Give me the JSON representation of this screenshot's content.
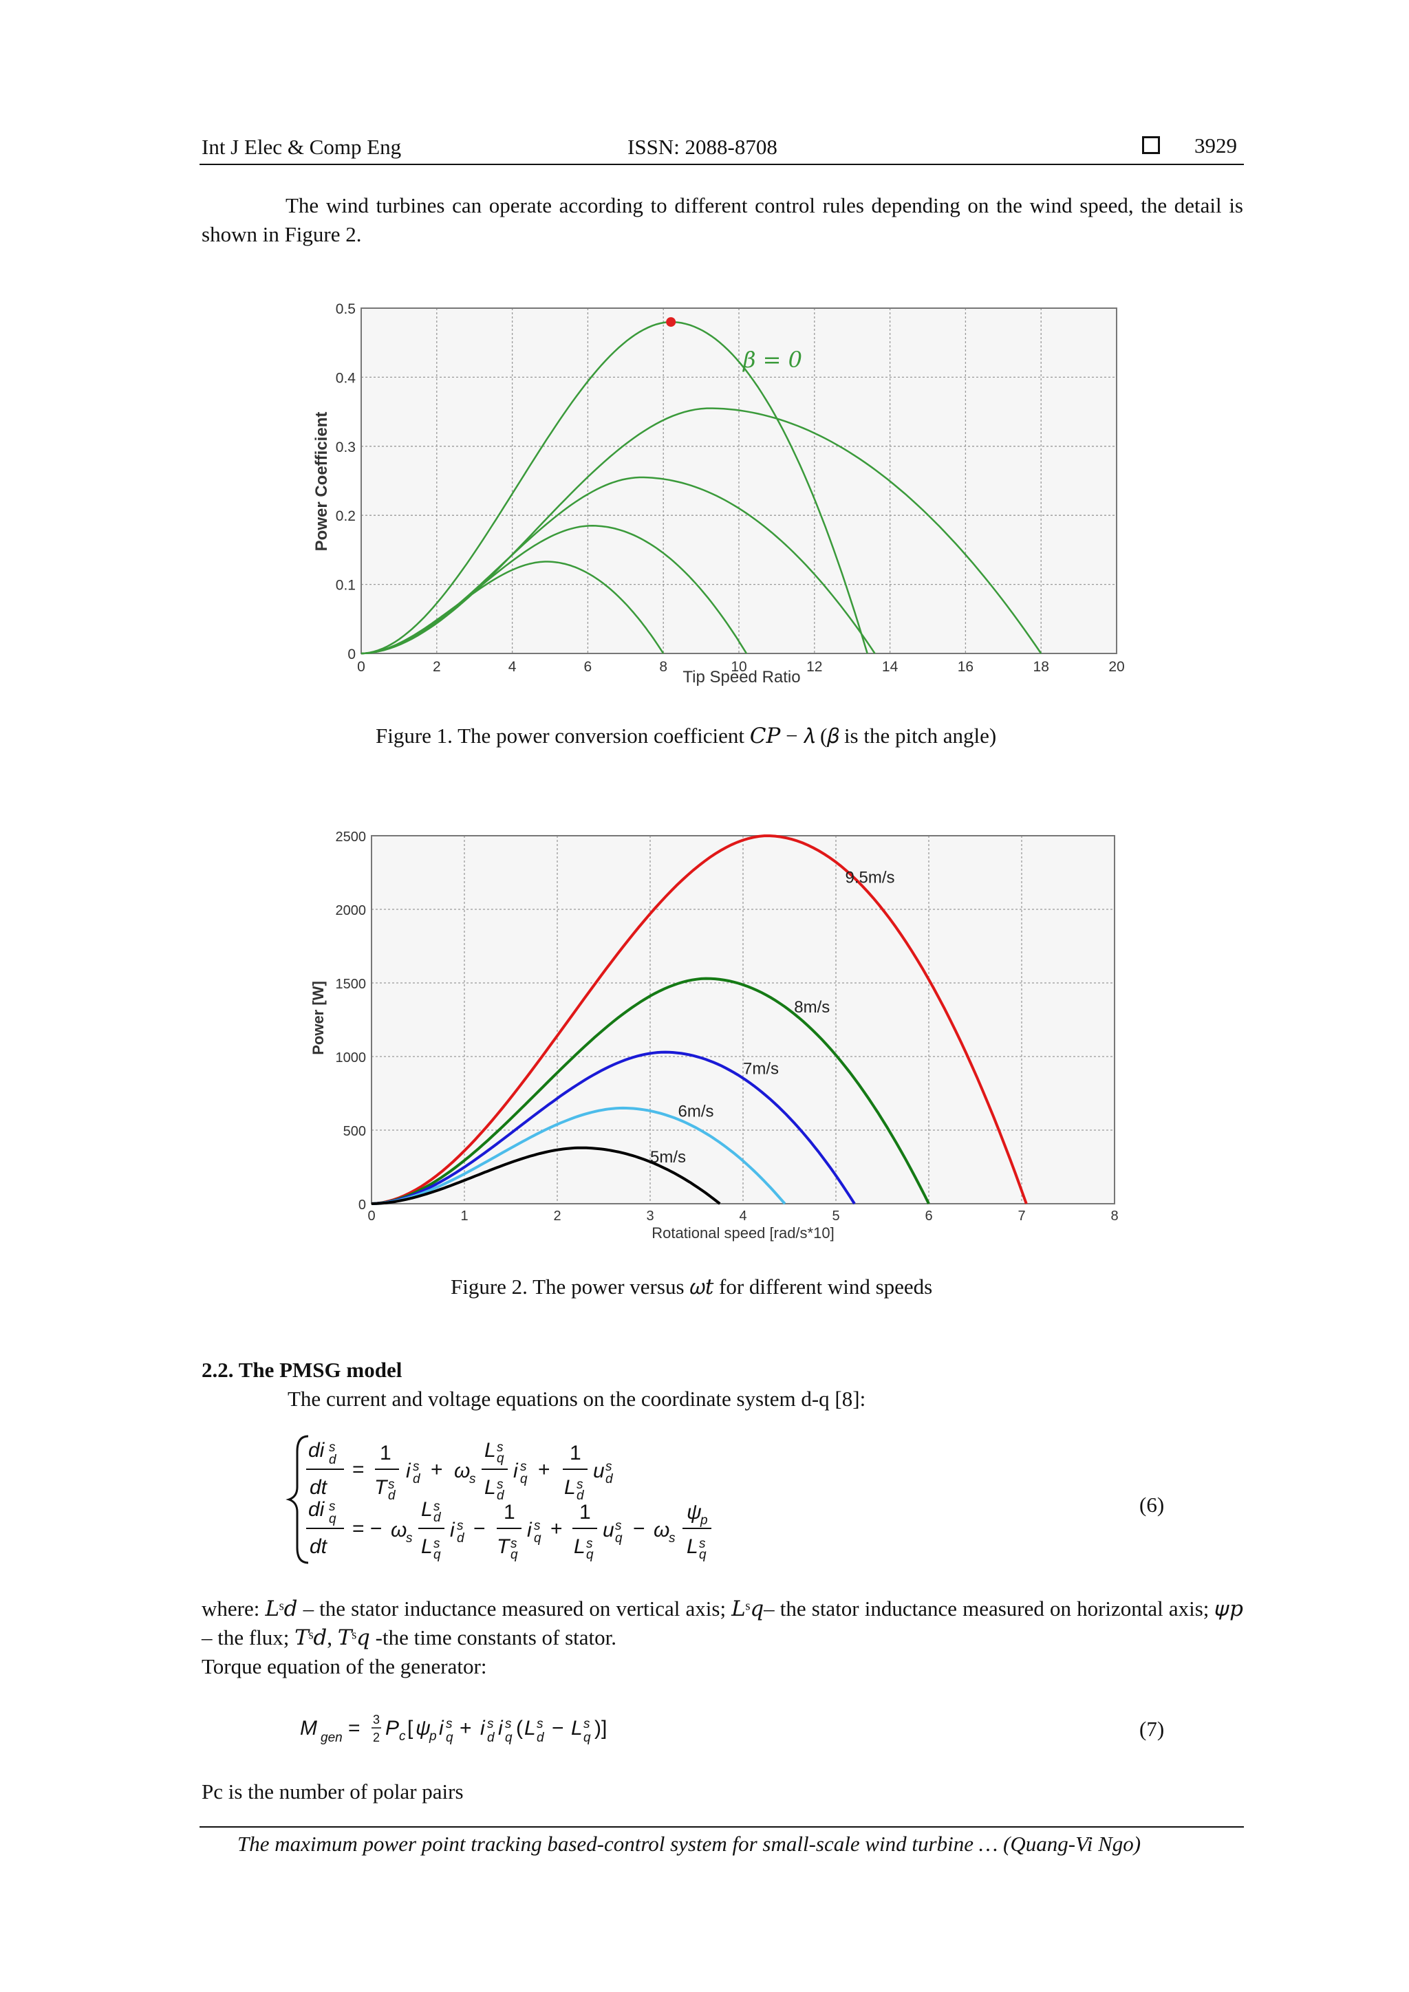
{
  "header": {
    "journal": "Int J Elec & Comp Eng",
    "issn": "ISSN: 2088-8708",
    "page": "3929"
  },
  "intro_text": "The wind turbines can operate according to different control rules depending on the wind speed, the detail is shown in Figure 2.",
  "figure1_caption": "Figure 1.  The power conversion coefficient 𝐶𝑃 − 𝜆 (𝛽 is the pitch angle)",
  "figure2_caption": "Figure 2.  The power versus 𝜔𝑡 for different wind speeds",
  "section_title": "2.2. The PMSG model",
  "section_intro": "The current and voltage equations on the coordinate system d-q [8]:",
  "eq6_number": "(6)",
  "eq7_number": "(7)",
  "where_text": "where:  𝐿ˢ𝑑 – the stator inductance measured on vertical axis; 𝐿ˢ𝑞– the stator inductance measured on horizontal axis; 𝜓𝑝 – the flux; 𝑇ˢ𝑑, 𝑇ˢ𝑞 -the  time constants of stator.",
  "torque_text": "Torque equation of the generator:",
  "polar_text": "Pc is the number of polar pairs",
  "footer": "The maximum power point tracking based-control system for small-scale wind turbine … (Quang-Vi Ngo)",
  "chart_data": [
    {
      "type": "line",
      "xlabel": "Tip Speed Ratio",
      "ylabel": "Power Coefficient",
      "xlim": [
        0,
        20
      ],
      "ylim": [
        0,
        0.5
      ],
      "xticks": [
        0,
        2,
        4,
        6,
        8,
        10,
        12,
        14,
        16,
        18,
        20
      ],
      "yticks": [
        0,
        0.1,
        0.2,
        0.3,
        0.4,
        0.5
      ],
      "ytick_labels": [
        "0",
        "0.1",
        "0.2",
        "0.3",
        "0.4",
        "0.5"
      ],
      "grid": true,
      "annotation": "β = 0",
      "marker": {
        "x": 8.2,
        "y": 0.48,
        "color": "#e02020"
      },
      "series_color": "#3a9a3a",
      "series": [
        {
          "peak_x": 8.2,
          "peak_y": 0.48,
          "end_x": 13.4
        },
        {
          "peak_x": 9.2,
          "peak_y": 0.355,
          "end_x": 18.0
        },
        {
          "peak_x": 7.4,
          "peak_y": 0.255,
          "end_x": 13.6
        },
        {
          "peak_x": 6.1,
          "peak_y": 0.185,
          "end_x": 10.2
        },
        {
          "peak_x": 4.9,
          "peak_y": 0.133,
          "end_x": 8.0
        }
      ]
    },
    {
      "type": "line",
      "xlabel": "Rotational speed [rad/s*10]",
      "ylabel": "Power [W]",
      "xlim": [
        0,
        8
      ],
      "ylim": [
        0,
        2500
      ],
      "xticks": [
        0,
        1,
        2,
        3,
        4,
        5,
        6,
        7,
        8
      ],
      "yticks": [
        0,
        500,
        1000,
        1500,
        2000,
        2500
      ],
      "grid": true,
      "series": [
        {
          "name": "9.5m/s",
          "color": "#e01818",
          "peak_x": 4.25,
          "peak_y": 2500,
          "end_x": 7.05,
          "label_x": 5.1,
          "label_y": 2180
        },
        {
          "name": "8m/s",
          "color": "#157a15",
          "peak_x": 3.6,
          "peak_y": 1530,
          "end_x": 6.0,
          "label_x": 4.55,
          "label_y": 1300
        },
        {
          "name": "7m/s",
          "color": "#1a1ad6",
          "peak_x": 3.15,
          "peak_y": 1030,
          "end_x": 5.2,
          "label_x": 4.0,
          "label_y": 880
        },
        {
          "name": "6m/s",
          "color": "#4cbcea",
          "peak_x": 2.7,
          "peak_y": 650,
          "end_x": 4.45,
          "label_x": 3.3,
          "label_y": 590
        },
        {
          "name": "5m/s",
          "color": "#000000",
          "peak_x": 2.25,
          "peak_y": 380,
          "end_x": 3.75,
          "label_x": 3.0,
          "label_y": 280
        }
      ]
    }
  ]
}
